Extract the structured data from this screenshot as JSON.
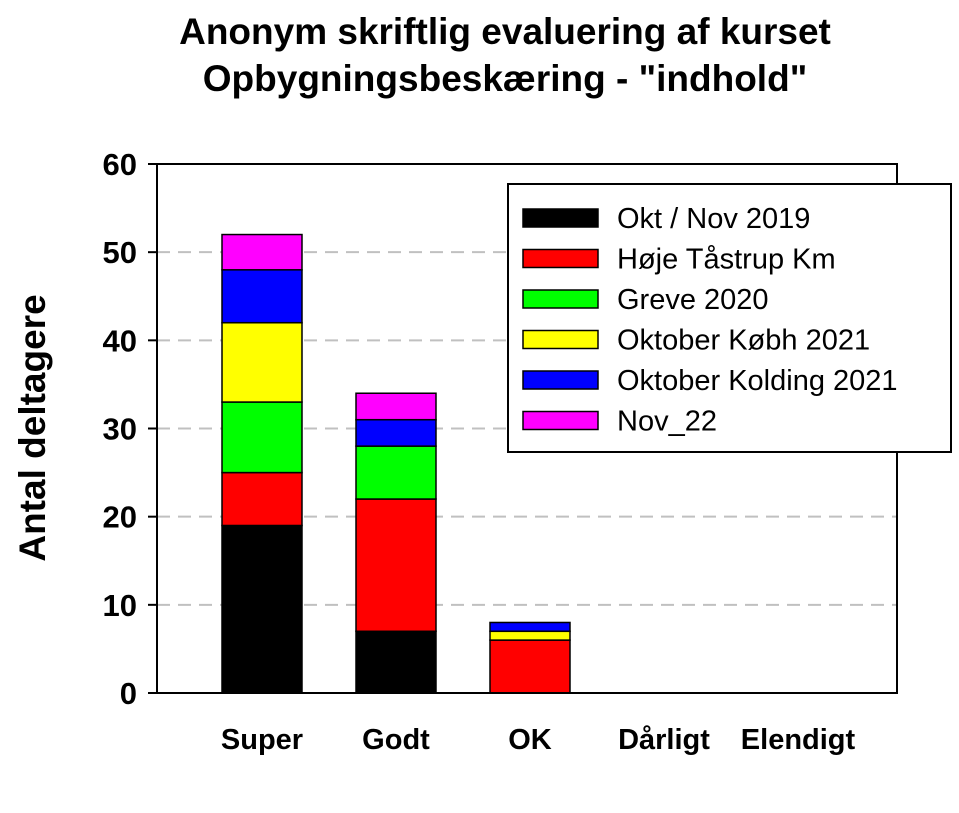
{
  "chart_data": {
    "type": "bar",
    "stacked": true,
    "title": "Anonym skriftlig evaluering af kurset",
    "subtitle": "Opbygningsbeskæring - \"indhold\"",
    "xlabel": "",
    "ylabel": "Antal deltagere",
    "ylim": [
      0,
      60
    ],
    "yticks": [
      0,
      10,
      20,
      30,
      40,
      50,
      60
    ],
    "grid": "horizontal dashed",
    "legend_position": "top-right",
    "categories": [
      "Super",
      "Godt",
      "OK",
      "Dårligt",
      "Elendigt"
    ],
    "series": [
      {
        "name": "Okt / Nov 2019",
        "color": "#000000",
        "values": [
          19,
          7,
          0,
          0,
          0
        ]
      },
      {
        "name": "Høje Tåstrup Km",
        "color": "#ff0000",
        "values": [
          6,
          15,
          6,
          0,
          0
        ]
      },
      {
        "name": "Greve 2020",
        "color": "#00ff00",
        "values": [
          8,
          6,
          0,
          0,
          0
        ]
      },
      {
        "name": "Oktober Købh 2021",
        "color": "#ffff00",
        "values": [
          9,
          0,
          1,
          0,
          0
        ]
      },
      {
        "name": "Oktober Kolding 2021",
        "color": "#0000ff",
        "values": [
          6,
          3,
          1,
          0,
          0
        ]
      },
      {
        "name": "Nov_22",
        "color": "#ff00ff",
        "values": [
          4,
          3,
          0,
          0,
          0
        ]
      }
    ]
  }
}
